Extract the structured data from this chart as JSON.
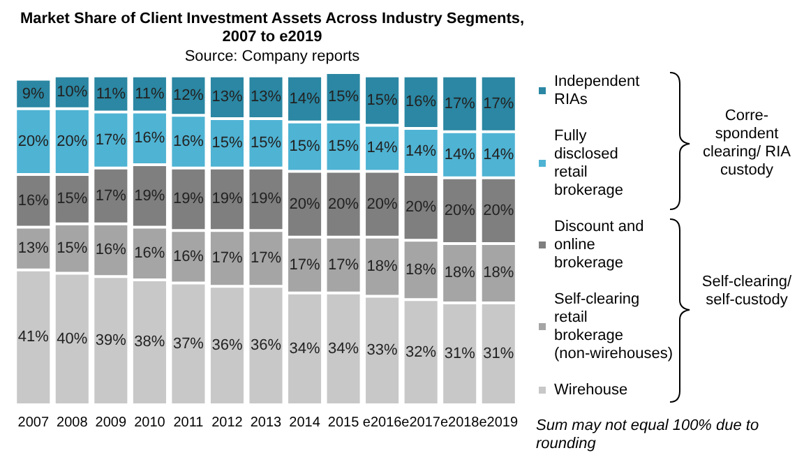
{
  "chart_data": {
    "type": "bar",
    "title": "Market Share of Client Investment Assets Across Industry Segments,\n2007 to e2019",
    "subtitle": "Source: Company reports",
    "categories": [
      "2007",
      "2008",
      "2009",
      "2010",
      "2011",
      "2012",
      "2013",
      "2014",
      "2015",
      "e2016",
      "e2017",
      "e2018",
      "e2019"
    ],
    "stacked": true,
    "legend": "right",
    "series": [
      {
        "name": "Wirehouse",
        "color": "#c8c8c8",
        "values": [
          41,
          40,
          39,
          38,
          37,
          36,
          36,
          34,
          34,
          33,
          32,
          31,
          31
        ],
        "value_labels": [
          "41%",
          "40%",
          "39%",
          "38%",
          "37%",
          "36%",
          "36%",
          "34%",
          "34%",
          "33%",
          "32%",
          "31%",
          "31%"
        ]
      },
      {
        "name": "Self-clearing retail brokerage (non-wirehouses)",
        "color": "#a5a5a5",
        "values": [
          13,
          15,
          16,
          16,
          16,
          17,
          17,
          17,
          17,
          18,
          18,
          18,
          18
        ],
        "value_labels": [
          "13%",
          "15%",
          "16%",
          "16%",
          "16%",
          "17%",
          "17%",
          "17%",
          "17%",
          "18%",
          "18%",
          "18%",
          "18%"
        ]
      },
      {
        "name": "Discount and online brokerage",
        "color": "#7f7f7f",
        "values": [
          16,
          15,
          17,
          19,
          19,
          19,
          19,
          20,
          20,
          20,
          20,
          20,
          20
        ],
        "value_labels": [
          "16%",
          "15%",
          "17%",
          "19%",
          "19%",
          "19%",
          "19%",
          "20%",
          "20%",
          "20%",
          "20%",
          "20%",
          "20%"
        ]
      },
      {
        "name": "Fully disclosed retail brokerage",
        "color": "#4fb3d3",
        "values": [
          20,
          20,
          17,
          16,
          16,
          15,
          15,
          15,
          15,
          14,
          14,
          14,
          14
        ],
        "value_labels": [
          "20%",
          "20%",
          "17%",
          "16%",
          "16%",
          "15%",
          "15%",
          "15%",
          "15%",
          "14%",
          "14%",
          "14%",
          "14%"
        ]
      },
      {
        "name": "Independent RIAs",
        "color": "#2b87a3",
        "values": [
          9,
          10,
          11,
          11,
          12,
          13,
          13,
          14,
          15,
          15,
          16,
          17,
          17
        ],
        "value_labels": [
          "9%",
          "10%",
          "11%",
          "11%",
          "12%",
          "13%",
          "13%",
          "14%",
          "15%",
          "15%",
          "16%",
          "17%",
          "17%"
        ]
      }
    ],
    "annotations": [
      "Corre-spondent clearing/ RIA custody",
      "Self-clearing/ self-custody",
      "Sum may not equal 100% due to rounding"
    ]
  }
}
